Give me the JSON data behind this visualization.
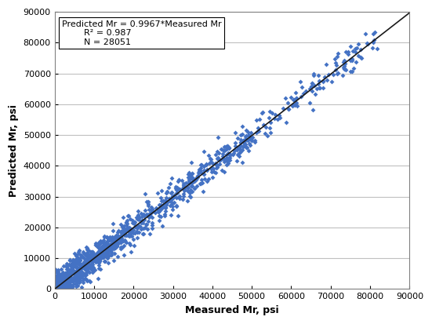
{
  "title": "",
  "xlabel": "Measured Mr, psi",
  "ylabel": "Predicted Mr, psi",
  "xlim": [
    0,
    90000
  ],
  "ylim": [
    0,
    90000
  ],
  "xticks": [
    0,
    10000,
    20000,
    30000,
    40000,
    50000,
    60000,
    70000,
    80000,
    90000
  ],
  "yticks": [
    0,
    10000,
    20000,
    30000,
    40000,
    50000,
    60000,
    70000,
    80000,
    90000
  ],
  "slope": 0.9967,
  "r_squared": 0.987,
  "n": 28051,
  "marker_color": "#4472C4",
  "marker": "D",
  "marker_size": 3,
  "line_color": "#1a1a1a",
  "annotation_line1": "Predicted Mr = 0.9967*Measured Mr",
  "annotation_line2": "R² = 0.987",
  "annotation_line3": "N = 28051",
  "background_color": "#ffffff",
  "grid_color": "#c0c0c0",
  "seed": 42,
  "num_points": 1200
}
